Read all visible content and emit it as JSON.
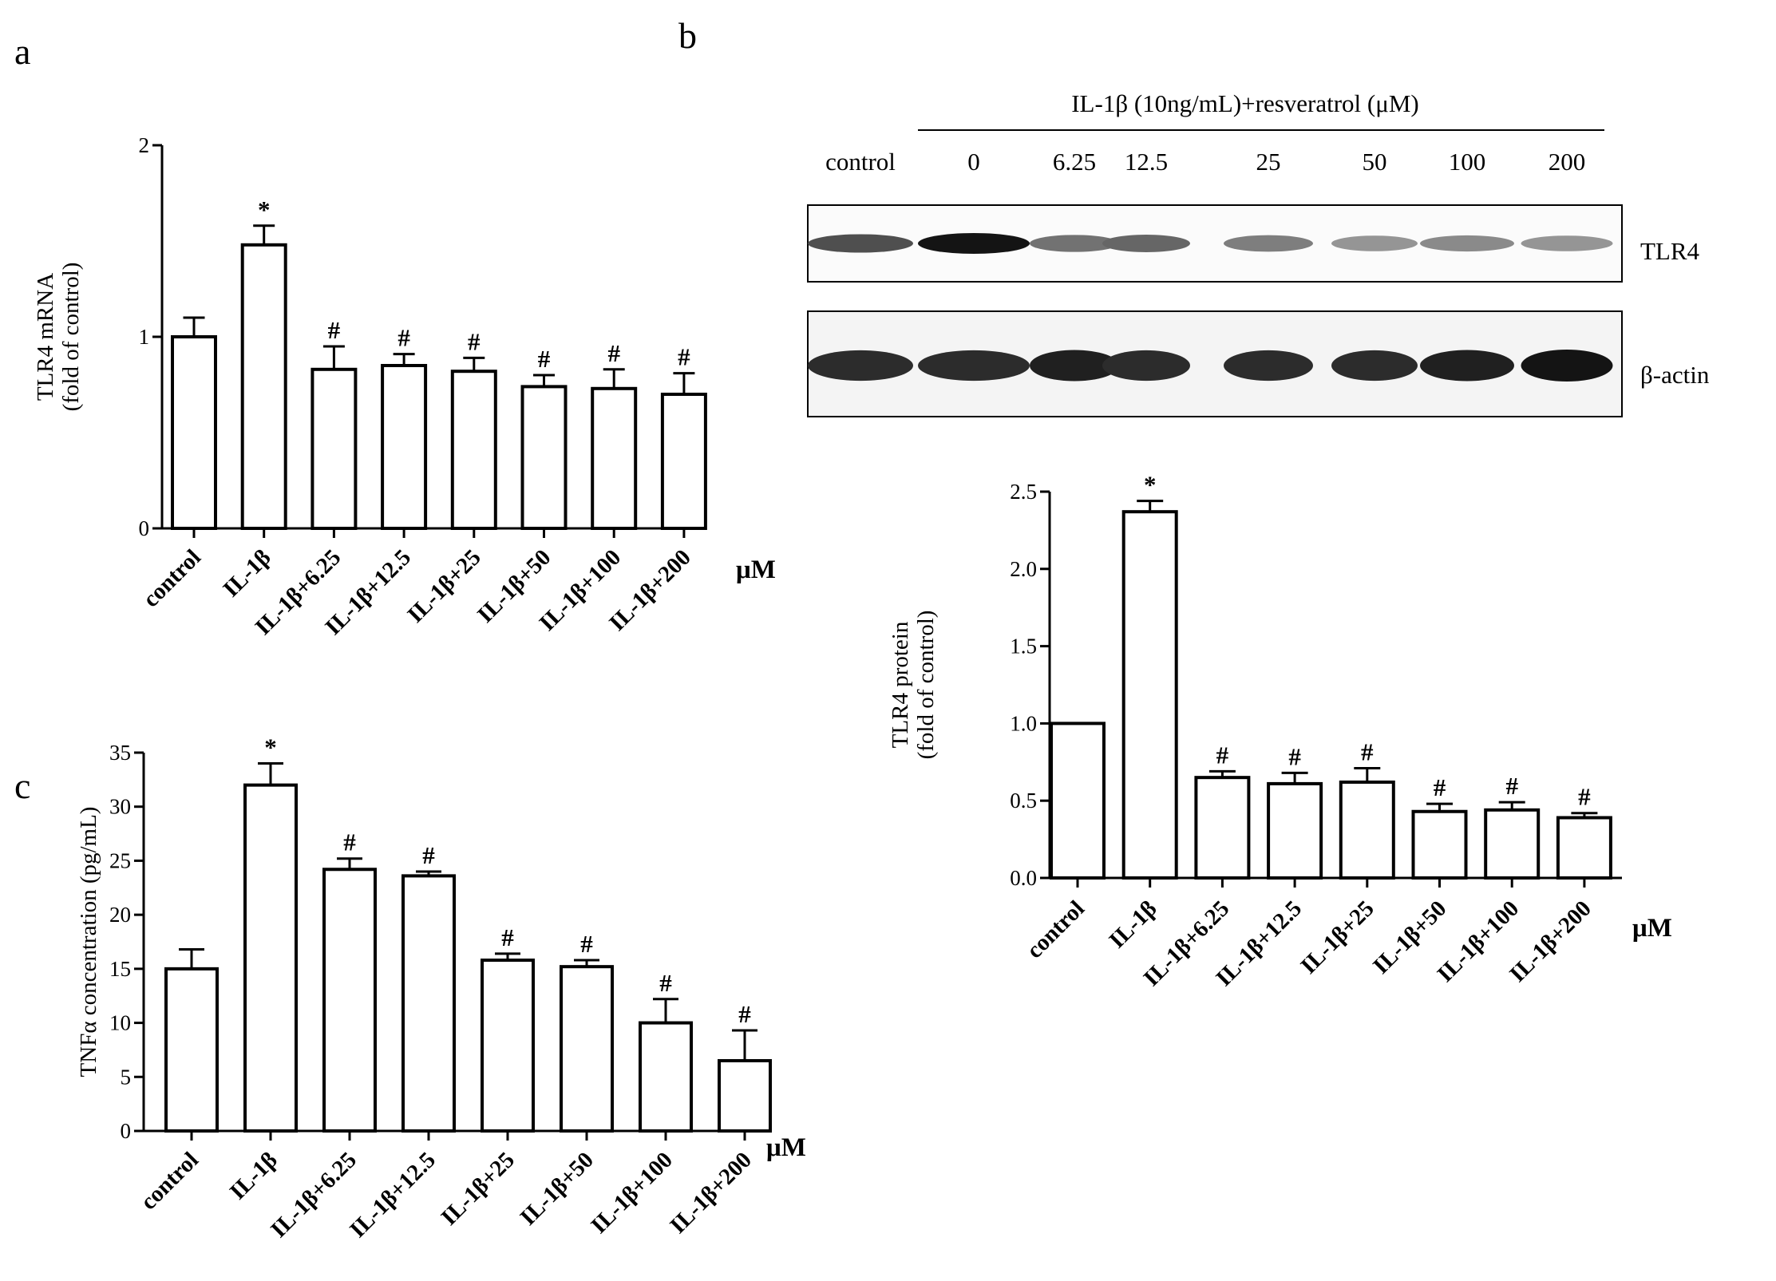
{
  "panels": {
    "a": "a",
    "b": "b",
    "c": "c"
  },
  "blot": {
    "treatment_label": "IL-1β (10ng/mL)+resveratrol (μM)",
    "lanes": [
      "control",
      "0",
      "6.25",
      "12.5",
      "25",
      "50",
      "100",
      "200"
    ],
    "rows": [
      {
        "label": "TLR4",
        "intensity": [
          0.75,
          1.0,
          0.6,
          0.65,
          0.55,
          0.45,
          0.5,
          0.45
        ]
      },
      {
        "label": "β-actin",
        "intensity": [
          0.9,
          0.9,
          0.95,
          0.9,
          0.9,
          0.9,
          0.95,
          1.0
        ]
      }
    ]
  },
  "chart_data": [
    {
      "id": "a",
      "type": "bar",
      "categories": [
        "control",
        "IL-1β",
        "IL-1β+6.25",
        "IL-1β+12.5",
        "IL-1β+25",
        "IL-1β+50",
        "IL-1β+100",
        "IL-1β+200"
      ],
      "values": [
        1.0,
        1.48,
        0.83,
        0.85,
        0.82,
        0.74,
        0.73,
        0.7
      ],
      "errors": [
        0.1,
        0.1,
        0.12,
        0.06,
        0.07,
        0.06,
        0.1,
        0.11
      ],
      "annotations": [
        "",
        "*",
        "#",
        "#",
        "#",
        "#",
        "#",
        "#"
      ],
      "ylabel_lines": [
        "TLR4 mRNA",
        "(fold of control)"
      ],
      "unit_label": "μM",
      "ylim": [
        0,
        2
      ],
      "yticks": [
        "0",
        "1",
        "2"
      ],
      "ytick_values": [
        0,
        1,
        2
      ]
    },
    {
      "id": "b",
      "type": "bar",
      "categories": [
        "control",
        "IL-1β",
        "IL-1β+6.25",
        "IL-1β+12.5",
        "IL-1β+25",
        "IL-1β+50",
        "IL-1β+100",
        "IL-1β+200"
      ],
      "values": [
        1.0,
        2.37,
        0.65,
        0.61,
        0.62,
        0.43,
        0.44,
        0.39
      ],
      "errors": [
        0.0,
        0.07,
        0.04,
        0.07,
        0.09,
        0.05,
        0.05,
        0.03
      ],
      "annotations": [
        "",
        "*",
        "#",
        "#",
        "#",
        "#",
        "#",
        "#"
      ],
      "ylabel_lines": [
        "TLR4 protein",
        "(fold of control)"
      ],
      "unit_label": "μM",
      "ylim": [
        0,
        2.5
      ],
      "yticks": [
        "0.0",
        "0.5",
        "1.0",
        "1.5",
        "2.0",
        "2.5"
      ],
      "ytick_values": [
        0,
        0.5,
        1.0,
        1.5,
        2.0,
        2.5
      ]
    },
    {
      "id": "c",
      "type": "bar",
      "categories": [
        "control",
        "IL-1β",
        "IL-1β+6.25",
        "IL-1β+12.5",
        "IL-1β+25",
        "IL-1β+50",
        "IL-1β+100",
        "IL-1β+200"
      ],
      "values": [
        15,
        32,
        24.2,
        23.6,
        15.8,
        15.2,
        10,
        6.5
      ],
      "errors": [
        1.8,
        2.0,
        1.0,
        0.4,
        0.6,
        0.6,
        2.2,
        2.8
      ],
      "annotations": [
        "",
        "*",
        "#",
        "#",
        "#",
        "#",
        "#",
        "#"
      ],
      "ylabel_lines": [
        "TNFα concentration (pg/mL)"
      ],
      "unit_label": "μM",
      "ylim": [
        0,
        35
      ],
      "yticks": [
        "0",
        "5",
        "10",
        "15",
        "20",
        "25",
        "30",
        "35"
      ],
      "ytick_values": [
        0,
        5,
        10,
        15,
        20,
        25,
        30,
        35
      ]
    }
  ]
}
